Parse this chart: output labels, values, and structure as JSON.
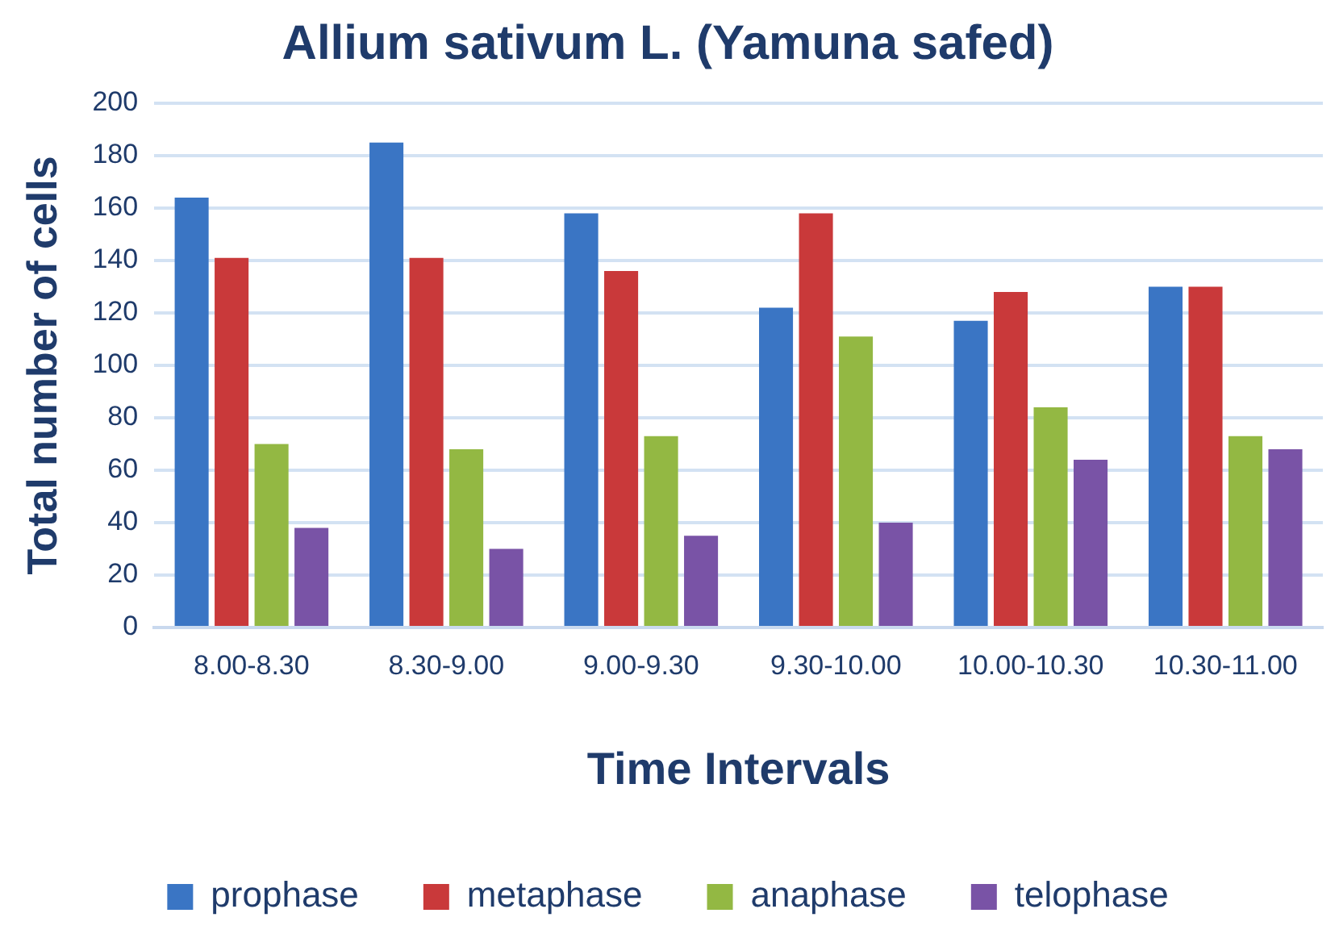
{
  "chart_data": {
    "type": "bar",
    "title": "Allium sativum L. (Yamuna safed)",
    "xlabel": "Time Intervals",
    "ylabel": "Total number of cells",
    "categories": [
      "8.00-8.30",
      "8.30-9.00",
      "9.00-9.30",
      "9.30-10.00",
      "10.00-10.30",
      "10.30-11.00"
    ],
    "series": [
      {
        "name": "prophase",
        "color": "#3a75c4",
        "values": [
          164,
          185,
          158,
          122,
          117,
          130
        ]
      },
      {
        "name": "metaphase",
        "color": "#c9393a",
        "values": [
          141,
          141,
          136,
          158,
          128,
          130
        ]
      },
      {
        "name": "anaphase",
        "color": "#93b843",
        "values": [
          70,
          68,
          73,
          111,
          84,
          73
        ]
      },
      {
        "name": "telophase",
        "color": "#7953a6",
        "values": [
          38,
          30,
          35,
          40,
          64,
          68
        ]
      }
    ],
    "ylim": [
      0,
      200
    ],
    "yticks": [
      0,
      20,
      40,
      60,
      80,
      100,
      120,
      140,
      160,
      180,
      200
    ],
    "grid": "y",
    "legend": "bottom"
  }
}
